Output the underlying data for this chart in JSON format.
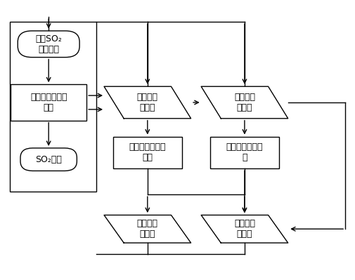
{
  "bg_color": "#ffffff",
  "border_color": "#000000",
  "lw": 1.0,
  "fs": 9.0,
  "OV1": [
    0.135,
    0.845,
    0.175,
    0.095
  ],
  "R1": [
    0.135,
    0.635,
    0.215,
    0.13
  ],
  "OV2": [
    0.135,
    0.43,
    0.16,
    0.082
  ],
  "BIG": [
    0.025,
    0.315,
    0.245,
    0.61
  ],
  "P1": [
    0.415,
    0.635,
    0.19,
    0.115
  ],
  "R2": [
    0.415,
    0.455,
    0.195,
    0.115
  ],
  "P2": [
    0.415,
    0.18,
    0.19,
    0.1
  ],
  "P3": [
    0.69,
    0.635,
    0.19,
    0.115
  ],
  "R3": [
    0.69,
    0.455,
    0.195,
    0.115
  ],
  "P4": [
    0.69,
    0.18,
    0.19,
    0.1
  ],
  "skew": 0.028,
  "text_OV1": "烟气SO₂\n含量变化",
  "text_R1": "自动调节贫胺液\n流量",
  "text_OV2": "SO₂反馈",
  "text_P1": "解吸塔液\n位变化",
  "text_R2": "自动调节富胺液\n流量",
  "text_P2": "解吸塔液\n位反馈",
  "text_P3": "解吸塔温\n度变化",
  "text_R3": "自动调节蔒汽流\n量",
  "text_P4": "解吸塔温\n度反馈"
}
